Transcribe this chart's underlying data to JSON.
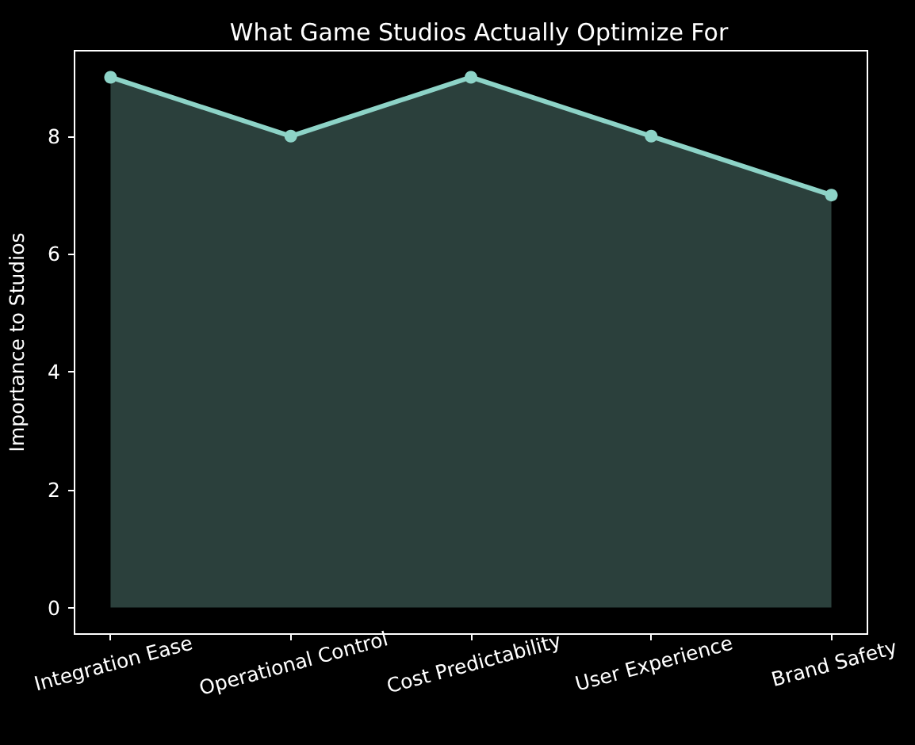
{
  "chart_data": {
    "type": "area",
    "title": "What Game Studios Actually Optimize For",
    "ylabel": "Importance to Studios",
    "categories": [
      "Integration Ease",
      "Operational Control",
      "Cost Predictability",
      "User Experience",
      "Brand Safety"
    ],
    "series": [
      {
        "color": "#8dd3c7",
        "values": [
          9,
          8,
          9,
          8,
          7
        ]
      }
    ],
    "ylim": [
      -0.45,
      9.45
    ],
    "yticks": [
      0,
      2,
      4,
      6,
      8
    ],
    "marker": "circle",
    "line_style": "solid",
    "grid": false
  }
}
